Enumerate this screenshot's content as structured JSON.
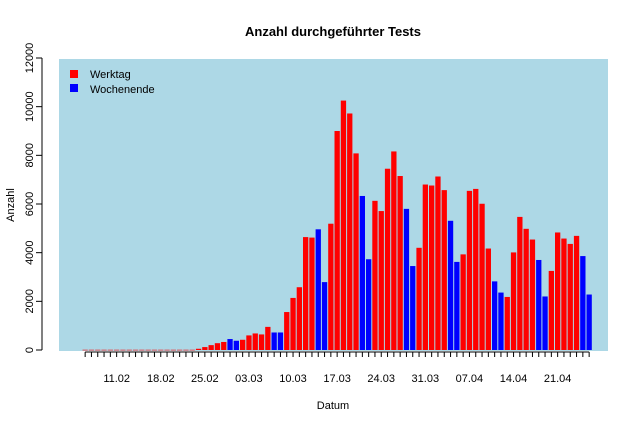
{
  "chart_data": {
    "type": "bar",
    "title": "Anzahl durchgeführter Tests",
    "xlabel": "Datum",
    "ylabel": "Anzahl",
    "ylim": [
      0,
      12000
    ],
    "y_ticks": [
      0,
      2000,
      4000,
      6000,
      8000,
      10000,
      12000
    ],
    "x_tick_labels": [
      "11.02",
      "18.02",
      "25.02",
      "03.03",
      "10.03",
      "17.03",
      "24.03",
      "31.03",
      "07.04",
      "14.04",
      "21.04"
    ],
    "background_color": "#ADD8E6",
    "legend_position": "top-left",
    "legend": [
      {
        "name": "Werktag",
        "color": "#FF0000"
      },
      {
        "name": "Wochenende",
        "color": "#0000FF"
      }
    ],
    "categories": [
      "06.02",
      "07.02",
      "08.02",
      "09.02",
      "10.02",
      "11.02",
      "12.02",
      "13.02",
      "14.02",
      "15.02",
      "16.02",
      "17.02",
      "18.02",
      "19.02",
      "20.02",
      "21.02",
      "22.02",
      "23.02",
      "24.02",
      "25.02",
      "26.02",
      "27.02",
      "28.02",
      "29.02",
      "01.03",
      "02.03",
      "03.03",
      "04.03",
      "05.03",
      "06.03",
      "07.03",
      "08.03",
      "09.03",
      "10.03",
      "11.03",
      "12.03",
      "13.03",
      "14.03",
      "15.03",
      "16.03",
      "17.03",
      "18.03",
      "19.03",
      "20.03",
      "21.03",
      "22.03",
      "23.03",
      "24.03",
      "25.03",
      "26.03",
      "27.03",
      "28.03",
      "29.03",
      "30.03",
      "31.03",
      "01.04",
      "02.04",
      "03.04",
      "04.04",
      "05.04",
      "06.04",
      "07.04",
      "08.04",
      "09.04",
      "10.04",
      "11.04",
      "12.04",
      "13.04",
      "14.04",
      "15.04",
      "16.04",
      "17.04",
      "18.04",
      "19.04",
      "20.04",
      "21.04",
      "22.04",
      "23.04",
      "24.04",
      "25.04",
      "26.04"
    ],
    "values": [
      10,
      10,
      10,
      10,
      10,
      10,
      10,
      10,
      10,
      10,
      10,
      10,
      10,
      10,
      10,
      10,
      10,
      10,
      50,
      120,
      200,
      280,
      330,
      450,
      380,
      420,
      600,
      680,
      640,
      950,
      720,
      720,
      1560,
      2140,
      2580,
      4640,
      4620,
      4960,
      2790,
      5190,
      9000,
      10250,
      9720,
      8080,
      6330,
      3730,
      6130,
      5710,
      7450,
      8160,
      7150,
      5800,
      3450,
      4200,
      6800,
      6760,
      7130,
      6570,
      5310,
      3620,
      3930,
      6540,
      6620,
      6010,
      4170,
      2820,
      2360,
      2180,
      4010,
      5470,
      4980,
      4540,
      3700,
      2200,
      3250,
      4830,
      4580,
      4360,
      4690,
      3860,
      2280
    ],
    "bar_colors": [
      "#FF0000",
      "#FF0000",
      "#FF0000",
      "#FF0000",
      "#FF0000",
      "#FF0000",
      "#FF0000",
      "#FF0000",
      "#FF0000",
      "#FF0000",
      "#FF0000",
      "#FF0000",
      "#FF0000",
      "#FF0000",
      "#FF0000",
      "#FF0000",
      "#FF0000",
      "#FF0000",
      "#FF0000",
      "#FF0000",
      "#FF0000",
      "#FF0000",
      "#FF0000",
      "#0000FF",
      "#0000FF",
      "#FF0000",
      "#FF0000",
      "#FF0000",
      "#FF0000",
      "#FF0000",
      "#0000FF",
      "#0000FF",
      "#FF0000",
      "#FF0000",
      "#FF0000",
      "#FF0000",
      "#FF0000",
      "#0000FF",
      "#0000FF",
      "#FF0000",
      "#FF0000",
      "#FF0000",
      "#FF0000",
      "#FF0000",
      "#0000FF",
      "#0000FF",
      "#FF0000",
      "#FF0000",
      "#FF0000",
      "#FF0000",
      "#FF0000",
      "#0000FF",
      "#0000FF",
      "#FF0000",
      "#FF0000",
      "#FF0000",
      "#FF0000",
      "#FF0000",
      "#0000FF",
      "#0000FF",
      "#FF0000",
      "#FF0000",
      "#FF0000",
      "#FF0000",
      "#FF0000",
      "#0000FF",
      "#0000FF",
      "#FF0000",
      "#FF0000",
      "#FF0000",
      "#FF0000",
      "#FF0000",
      "#0000FF",
      "#0000FF",
      "#FF0000",
      "#FF0000",
      "#FF0000",
      "#FF0000",
      "#FF0000",
      "#0000FF",
      "#0000FF"
    ]
  }
}
